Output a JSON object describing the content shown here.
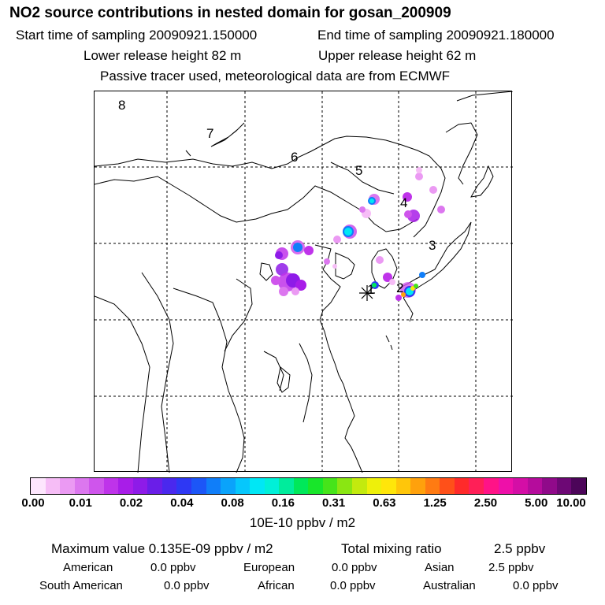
{
  "title": "NO2 source contributions in nested domain for gosan_200909",
  "start_label": "Start time of sampling 20090921.150000",
  "end_label": "End time of sampling 20090921.180000",
  "lower_height": "Lower release height   82 m",
  "upper_height": "Upper release height   62 m",
  "tracer_note": "Passive tracer used, meteorological data are from ECMWF",
  "zones": [
    "1",
    "2",
    "3",
    "4",
    "5",
    "6",
    "7",
    "8"
  ],
  "colorbar": {
    "ticks": [
      "0.00",
      "0.01",
      "0.02",
      "0.04",
      "0.08",
      "0.16",
      "0.31",
      "0.63",
      "1.25",
      "2.50",
      "5.00",
      "10.00"
    ],
    "unit": "10E-10 ppbv / m2",
    "colors": [
      "#fde6fd",
      "#f6bdf6",
      "#eb9af3",
      "#dc77ef",
      "#cf55ec",
      "#bf33ea",
      "#a81de8",
      "#8e1be8",
      "#6a1ee8",
      "#4a28ee",
      "#2e38f4",
      "#1c56f7",
      "#107ef9",
      "#0aa3fb",
      "#06c7fc",
      "#00e7f5",
      "#00f0d8",
      "#00ec9c",
      "#00e85a",
      "#18e62a",
      "#46e41a",
      "#8ae612",
      "#c3ea0e",
      "#eef00a",
      "#ffe60a",
      "#ffc60a",
      "#ffa10c",
      "#ff7b12",
      "#ff5019",
      "#ff2a2a",
      "#ff1f57",
      "#ff1387",
      "#ee10a9",
      "#d40ea6",
      "#b50c9c",
      "#900a8a",
      "#6d0875",
      "#4c0559"
    ]
  },
  "stats": {
    "max_value": "Maximum value  0.135E-09 ppbv / m2",
    "total_label": "Total mixing ratio",
    "total_value": "2.5 ppbv",
    "american_label": "American",
    "american_value": "0.0 ppbv",
    "european_label": "European",
    "european_value": "0.0 ppbv",
    "asian_label": "Asian",
    "asian_value": "2.5 ppbv",
    "south_american_label": "South American",
    "south_american_value": "0.0 ppbv",
    "african_label": "African",
    "african_value": "0.0 ppbv",
    "australian_label": "Australian",
    "australian_value": "0.0 ppbv"
  }
}
